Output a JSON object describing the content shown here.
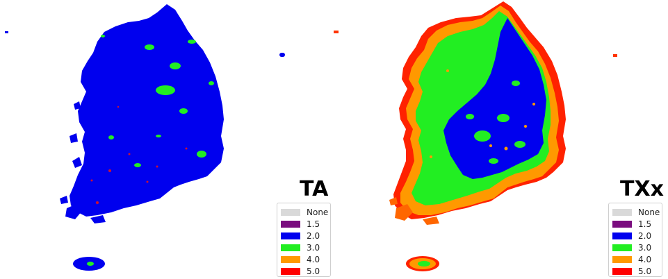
{
  "panels": [
    {
      "title": "TA",
      "dominant": "2.0",
      "legend": [
        {
          "label": "None",
          "color": "#d9d9d9"
        },
        {
          "label": "1.5",
          "color": "#7a0c7e"
        },
        {
          "label": "2.0",
          "color": "#0000ee"
        },
        {
          "label": "3.0",
          "color": "#22ee22"
        },
        {
          "label": "4.0",
          "color": "#ff9900"
        },
        {
          "label": "5.0",
          "color": "#ff0000"
        }
      ]
    },
    {
      "title": "TXx",
      "dominant": "3.0",
      "legend": [
        {
          "label": "None",
          "color": "#d9d9d9"
        },
        {
          "label": "1.5",
          "color": "#7a0c7e"
        },
        {
          "label": "2.0",
          "color": "#0000ee"
        },
        {
          "label": "3.0",
          "color": "#22ee22"
        },
        {
          "label": "4.0",
          "color": "#ff9900"
        },
        {
          "label": "5.0",
          "color": "#ff0000"
        }
      ]
    }
  ]
}
